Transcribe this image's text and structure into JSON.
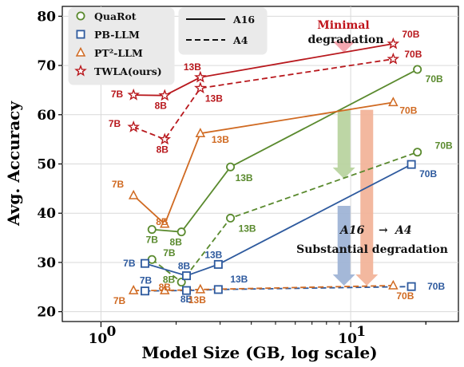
{
  "chart_data": {
    "type": "line",
    "xlabel": "Model Size (GB, log scale)",
    "ylabel": "Avg. Accuracy",
    "xscale": "log",
    "xlim": [
      0.7,
      27
    ],
    "ylim": [
      18,
      82
    ],
    "x_ticks": [
      {
        "value": 1,
        "label": "10",
        "exp": "0"
      },
      {
        "value": 10,
        "label": "10",
        "exp": "1"
      }
    ],
    "y_ticks": [
      20,
      30,
      40,
      50,
      60,
      70,
      80
    ],
    "grid": true,
    "legend": {
      "placement": "top-left",
      "methods": [
        "QuaRot",
        "PB-LLM",
        "PT²-LLM",
        "TWLA(ours)"
      ],
      "line_styles": [
        "A16",
        "A4"
      ]
    },
    "series": [
      {
        "method": "QuaRot",
        "style": "A16",
        "color": "#5a8a2e",
        "marker": "circle",
        "x": [
          1.6,
          2.1,
          3.3,
          18.5
        ],
        "y": [
          36.7,
          36.2,
          49.4,
          69.2
        ],
        "labels": [
          "7B",
          "8B",
          "13B",
          "70B"
        ]
      },
      {
        "method": "QuaRot",
        "style": "A4",
        "color": "#5a8a2e",
        "marker": "circle",
        "x": [
          1.6,
          2.1,
          3.3,
          18.5
        ],
        "y": [
          30.6,
          26.0,
          39.0,
          52.4
        ],
        "labels": [
          "7B",
          "8B",
          "13B",
          "70B"
        ]
      },
      {
        "method": "PB-LLM",
        "style": "A16",
        "color": "#2e5a9e",
        "marker": "square",
        "x": [
          1.5,
          2.2,
          2.95,
          17.5
        ],
        "y": [
          29.8,
          27.3,
          29.6,
          49.9
        ],
        "labels": [
          "7B",
          "8B",
          "13B",
          "70B"
        ]
      },
      {
        "method": "PB-LLM",
        "style": "A4",
        "color": "#2e5a9e",
        "marker": "square",
        "x": [
          1.5,
          2.2,
          2.95,
          17.5
        ],
        "y": [
          24.2,
          24.3,
          24.5,
          25.1
        ],
        "labels": [
          "7B",
          "8B",
          "13B",
          "70B"
        ]
      },
      {
        "method": "PT²-LLM",
        "style": "A16",
        "color": "#d06a22",
        "marker": "triangle",
        "x": [
          1.35,
          1.8,
          2.5,
          14.8
        ],
        "y": [
          43.6,
          37.8,
          56.2,
          62.5
        ],
        "labels": [
          "7B",
          "8B",
          "13B",
          "70B"
        ]
      },
      {
        "method": "PT²-LLM",
        "style": "A4",
        "color": "#d06a22",
        "marker": "triangle",
        "x": [
          1.35,
          1.8,
          2.5,
          14.8
        ],
        "y": [
          24.3,
          24.3,
          24.5,
          25.3
        ],
        "labels": [
          "7B",
          "8B",
          "13B",
          "70B"
        ]
      },
      {
        "method": "TWLA(ours)",
        "style": "A16",
        "color": "#b8181d",
        "marker": "star",
        "x": [
          1.35,
          1.8,
          2.5,
          14.8
        ],
        "y": [
          64.0,
          63.9,
          67.6,
          74.4
        ],
        "labels": [
          "7B",
          "8B",
          "13B",
          "70B"
        ]
      },
      {
        "method": "TWLA(ours)",
        "style": "A4",
        "color": "#b8181d",
        "marker": "star",
        "x": [
          1.35,
          1.8,
          2.5,
          14.8
        ],
        "y": [
          57.5,
          55.0,
          65.4,
          71.3
        ],
        "labels": [
          "7B",
          "8B",
          "13B",
          "70B"
        ]
      }
    ],
    "annotations": {
      "minimal_line1": "Minimal",
      "minimal_line2": "degradation",
      "a16_text": "A16",
      "arrow_text": "→",
      "a4_text": "A4",
      "substantial": "Substantial degradation"
    },
    "annotation_arrows": [
      {
        "x": 9.4,
        "y_from": 75,
        "y_to": 72.6,
        "color": "#f4a3ad"
      },
      {
        "x": 9.4,
        "y_from": 61,
        "y_to": 47,
        "color": "#b9d4a0"
      },
      {
        "x": 9.4,
        "y_from": 41.5,
        "y_to": 25.3,
        "color": "#9fb4d6"
      },
      {
        "x": 11.6,
        "y_from": 61,
        "y_to": 25.3,
        "color": "#f2b49a"
      }
    ]
  }
}
